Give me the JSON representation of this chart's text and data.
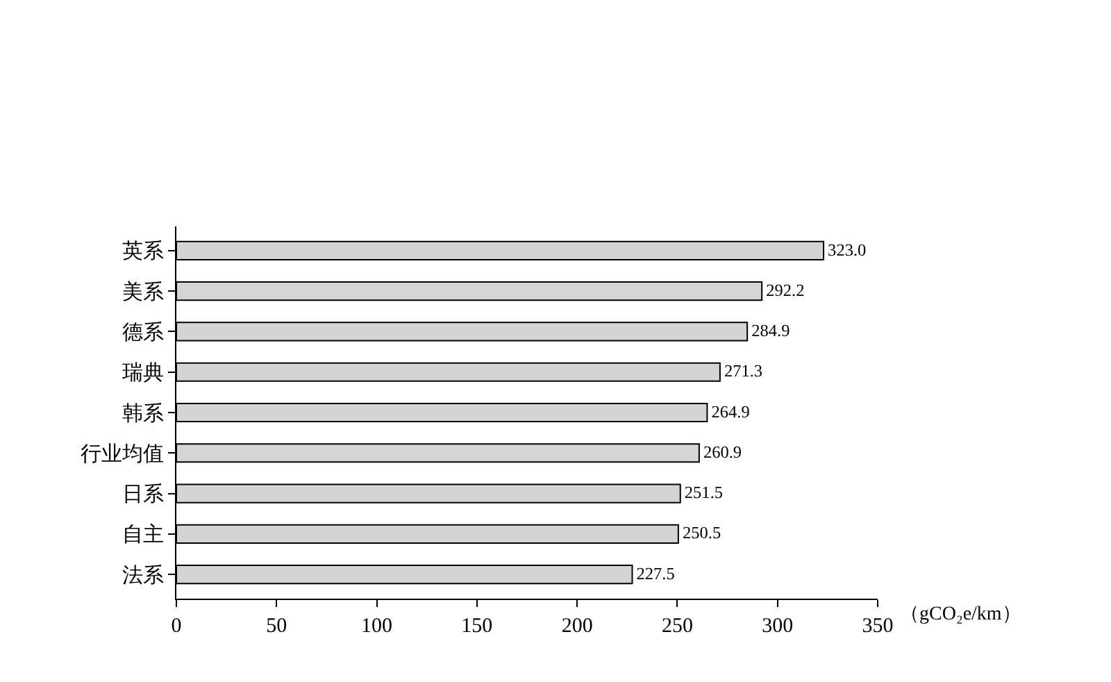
{
  "chart_data": {
    "type": "bar",
    "orientation": "horizontal",
    "xlabel": "（gCO₂e/km）",
    "categories": [
      "英系",
      "美系",
      "德系",
      "瑞典",
      "韩系",
      "行业均值",
      "日系",
      "自主",
      "法系"
    ],
    "values": [
      323.0,
      292.2,
      284.9,
      271.3,
      264.9,
      260.9,
      251.5,
      250.5,
      227.5
    ],
    "value_labels": [
      "323.0",
      "292.2",
      "284.9",
      "271.3",
      "264.9",
      "260.9",
      "251.5",
      "250.5",
      "227.5"
    ],
    "color": "#d4d4d4",
    "xlim": [
      0,
      350
    ],
    "xticks": [
      0,
      50,
      100,
      150,
      200,
      250,
      300,
      350
    ],
    "legend": false
  }
}
